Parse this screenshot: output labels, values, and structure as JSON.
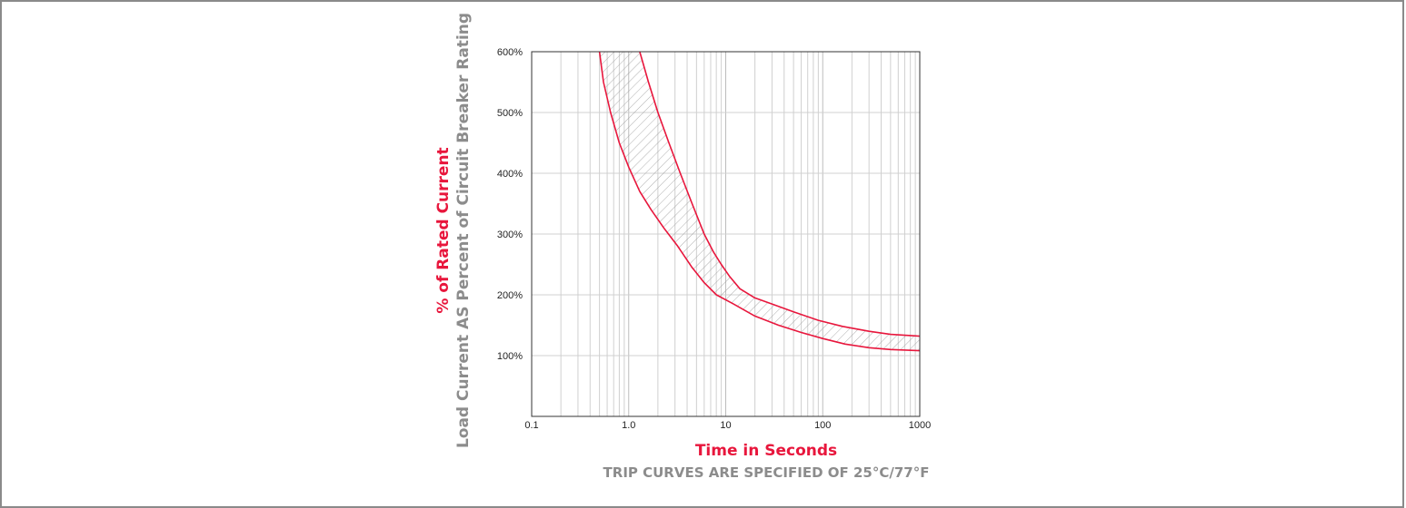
{
  "chart_data": {
    "type": "area",
    "title": "",
    "xlabel": "Time in Seconds",
    "ylabel": "% of Rated Current",
    "ylabel_secondary": "Load Current AS Percent of Circuit Breaker Rating",
    "note": "TRIP CURVES ARE SPECIFIED OF 25°C/77°F",
    "x_scale": "log",
    "xlim": [
      0.1,
      1000
    ],
    "ylim": [
      0,
      600
    ],
    "grid": true,
    "x_ticks": [
      "0.1",
      "1.0",
      "10",
      "100",
      "1000"
    ],
    "y_ticks": [
      "100%",
      "200%",
      "300%",
      "400%",
      "500%",
      "600%"
    ],
    "colors": {
      "curve": "#e8163c",
      "label_red": "#e8163c",
      "label_grey": "#8c8c8c",
      "band_hatch": "#9a9a9a"
    },
    "series": [
      {
        "role": "lower",
        "x": [
          0.5,
          0.55,
          0.65,
          0.8,
          1.0,
          1.3,
          1.7,
          2.3,
          3.2,
          4.5,
          6.0,
          8.0,
          12,
          20,
          35,
          60,
          100,
          170,
          300,
          500,
          1000
        ],
        "y": [
          600,
          550,
          500,
          450,
          410,
          370,
          340,
          310,
          280,
          245,
          220,
          200,
          185,
          165,
          150,
          138,
          128,
          119,
          113,
          110,
          108
        ]
      },
      {
        "role": "upper",
        "x": [
          1.3,
          1.6,
          2.0,
          2.6,
          3.4,
          4.5,
          6.0,
          7.5,
          9.0,
          11,
          14,
          20,
          30,
          50,
          90,
          160,
          300,
          500,
          1000
        ],
        "y": [
          600,
          550,
          500,
          450,
          400,
          350,
          300,
          270,
          250,
          230,
          210,
          195,
          185,
          172,
          158,
          148,
          140,
          135,
          132
        ]
      }
    ]
  }
}
